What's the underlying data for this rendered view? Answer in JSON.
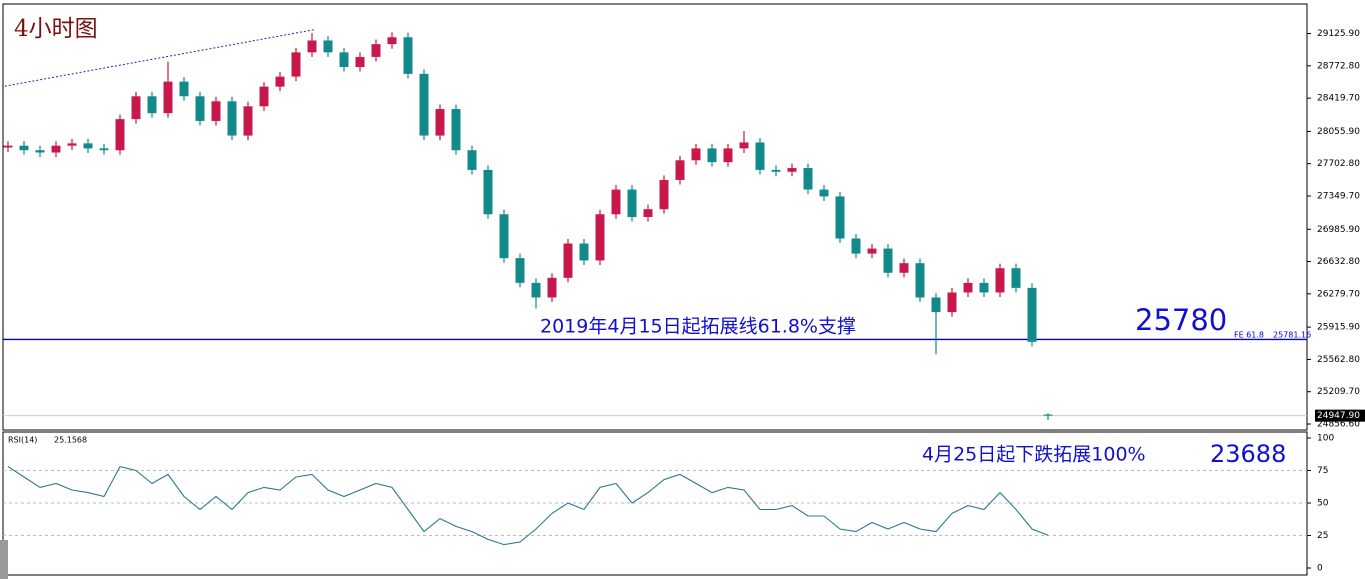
{
  "chart_data": [
    {
      "type": "candlestick",
      "title": "4小时图",
      "open": [
        27880,
        27900,
        27850,
        27825,
        27900,
        27925,
        27870,
        27850,
        28190,
        28440,
        28255,
        28600,
        28440,
        28170,
        28385,
        28010,
        28330,
        28545,
        28655,
        28920,
        29050,
        28920,
        28760,
        28870,
        29010,
        29085,
        28685,
        28010,
        28300,
        27850,
        27635,
        27150,
        26670,
        26400,
        26240,
        26455,
        26830,
        26645,
        27150,
        27420,
        27120,
        27205,
        27525,
        27740,
        27870,
        27720,
        27870,
        27935,
        27635,
        27615,
        27655,
        27420,
        27345,
        26885,
        26720,
        26775,
        26510,
        26615,
        26240,
        26080,
        26295,
        26400,
        26295,
        26560,
        26345,
        24960
      ],
      "high": [
        27950,
        27950,
        27900,
        27950,
        27975,
        27975,
        27920,
        28240,
        28490,
        28490,
        28820,
        28650,
        28490,
        28435,
        28435,
        28380,
        28595,
        28705,
        28970,
        29130,
        29100,
        28970,
        28920,
        29060,
        29140,
        29135,
        28735,
        28350,
        28350,
        27900,
        27685,
        27200,
        26720,
        26450,
        26505,
        26880,
        26880,
        27200,
        27470,
        27470,
        27255,
        27575,
        27790,
        27920,
        27920,
        27920,
        28060,
        27985,
        27685,
        27705,
        27705,
        27470,
        27395,
        26935,
        26825,
        26825,
        26665,
        26665,
        26290,
        26345,
        26450,
        26450,
        26610,
        26610,
        26395,
        24975
      ],
      "low": [
        27830,
        27800,
        27775,
        27775,
        27850,
        27820,
        27800,
        27800,
        28140,
        28205,
        28205,
        28390,
        28120,
        28120,
        27960,
        27960,
        28280,
        28495,
        28605,
        28870,
        28870,
        28710,
        28710,
        28820,
        28960,
        28635,
        27960,
        27960,
        27800,
        27585,
        27100,
        26620,
        26350,
        26120,
        26190,
        26405,
        26595,
        26595,
        27100,
        27070,
        27070,
        27155,
        27475,
        27690,
        27670,
        27670,
        27820,
        27585,
        27565,
        27565,
        27370,
        27295,
        26835,
        26670,
        26670,
        26460,
        26460,
        26190,
        25620,
        26030,
        26245,
        26245,
        26245,
        26295,
        25705,
        24900
      ],
      "close": [
        27900,
        27850,
        27825,
        27900,
        27925,
        27870,
        27850,
        28190,
        28440,
        28255,
        28600,
        28440,
        28170,
        28385,
        28010,
        28330,
        28545,
        28655,
        28920,
        29050,
        28920,
        28760,
        28870,
        29010,
        29085,
        28685,
        28010,
        28300,
        27850,
        27635,
        27150,
        26670,
        26400,
        26240,
        26455,
        26830,
        26645,
        27150,
        27420,
        27120,
        27205,
        27525,
        27740,
        27870,
        27720,
        27870,
        27935,
        27635,
        27615,
        27655,
        27420,
        27345,
        26885,
        26720,
        26775,
        26510,
        26615,
        26240,
        26080,
        26295,
        26400,
        26295,
        26560,
        26345,
        25755,
        24947.9
      ],
      "up_color": "#c8194b",
      "down_color": "#138a8a",
      "ylim": [
        24813,
        29405
      ],
      "yticks": [
        {
          "value": 29125.9,
          "label": "29125.90"
        },
        {
          "value": 28772.8,
          "label": "28772.80"
        },
        {
          "value": 28419.7,
          "label": "28419.70"
        },
        {
          "value": 28055.9,
          "label": "28055.90"
        },
        {
          "value": 27702.8,
          "label": "27702.80"
        },
        {
          "value": 27349.7,
          "label": "27349.70"
        },
        {
          "value": 26985.9,
          "label": "26985.90"
        },
        {
          "value": 26632.8,
          "label": "26632.80"
        },
        {
          "value": 26279.7,
          "label": "26279.70"
        },
        {
          "value": 25915.9,
          "label": "25915.90"
        },
        {
          "value": 25562.8,
          "label": "25562.80"
        },
        {
          "value": 25209.7,
          "label": "25209.70"
        },
        {
          "value": 24856.6,
          "label": "24856.60"
        }
      ],
      "last_price": {
        "value": 24947.9,
        "label": "24947.90"
      },
      "level": 25781.16,
      "level_color": "#0000cc",
      "level_tag": "FE 61.8",
      "level_note": "2019年4月15日起拓展线61.8%支撑",
      "level_target": 25780,
      "trendline": {
        "x": [
          -0.2,
          19.2
        ],
        "y": [
          28550,
          29170
        ],
        "color": "#2020c0"
      },
      "extension_note": "4月25日起下跌拓展100%",
      "extension_target": 23688
    },
    {
      "type": "line",
      "indicator": "RSI(14)",
      "color": "#2a7a8a",
      "values": [
        78,
        70,
        62,
        65,
        60,
        58,
        55,
        78,
        75,
        65,
        72,
        55,
        45,
        55,
        45,
        58,
        62,
        60,
        70,
        72,
        60,
        55,
        60,
        65,
        62,
        45,
        28,
        38,
        32,
        28,
        22,
        18,
        20,
        30,
        42,
        50,
        45,
        62,
        65,
        50,
        58,
        68,
        72,
        65,
        58,
        62,
        60,
        45,
        45,
        48,
        40,
        40,
        30,
        28,
        35,
        30,
        35,
        30,
        28,
        42,
        48,
        45,
        58,
        45,
        30,
        25.1568
      ],
      "ylim": [
        0,
        100
      ],
      "yticks": [
        100,
        75,
        50,
        25,
        0
      ],
      "grid": true
    }
  ]
}
